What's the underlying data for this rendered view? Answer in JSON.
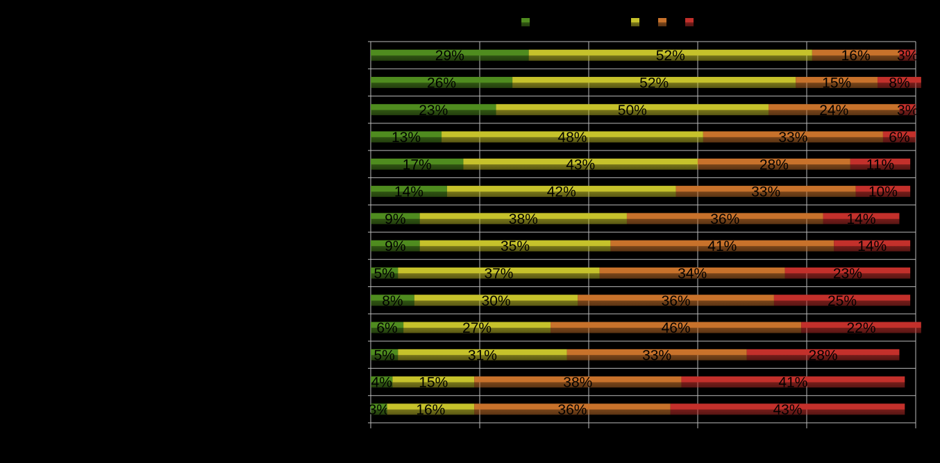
{
  "chart_data": {
    "type": "stacked-bar-horizontal",
    "categories": [
      null,
      null,
      null,
      null,
      null,
      null,
      null,
      null,
      null,
      null,
      null,
      null,
      null,
      null
    ],
    "series": [
      {
        "color": "#4f8c1f",
        "values": [
          29,
          26,
          23,
          13,
          17,
          14,
          9,
          9,
          5,
          8,
          6,
          5,
          4,
          3
        ],
        "value_labels": [
          "29%",
          "26%",
          "23%",
          "13%",
          "17%",
          "14%",
          "9%",
          "9%",
          "5%",
          "8%",
          "6%",
          "5%",
          "4%",
          "3%"
        ]
      },
      {
        "color": "#c6c22b",
        "values": [
          52,
          52,
          50,
          48,
          43,
          42,
          38,
          35,
          37,
          30,
          27,
          31,
          15,
          16
        ],
        "value_labels": [
          "52%",
          "52%",
          "50%",
          "48%",
          "43%",
          "42%",
          "38%",
          "35%",
          "37%",
          "30%",
          "27%",
          "31%",
          "15%",
          "16%"
        ]
      },
      {
        "color": "#c8722b",
        "values": [
          16,
          15,
          24,
          33,
          28,
          33,
          36,
          41,
          34,
          36,
          46,
          33,
          38,
          36
        ],
        "value_labels": [
          "16%",
          "15%",
          "24%",
          "33%",
          "28%",
          "33%",
          "36%",
          "41%",
          "34%",
          "36%",
          "46%",
          "33%",
          "38%",
          "36%"
        ]
      },
      {
        "color": "#c3302b",
        "values": [
          3,
          8,
          3,
          6,
          11,
          10,
          14,
          14,
          23,
          25,
          22,
          28,
          41,
          43
        ],
        "value_labels": [
          "3%",
          "8%",
          "3%",
          "6%",
          "11%",
          "10%",
          "14%",
          "14%",
          "23%",
          "25%",
          "22%",
          "28%",
          "41%",
          "43%"
        ]
      }
    ],
    "xlim": [
      0,
      100
    ],
    "xticks": [
      0,
      20,
      40,
      60,
      80,
      100
    ],
    "grid": true
  }
}
